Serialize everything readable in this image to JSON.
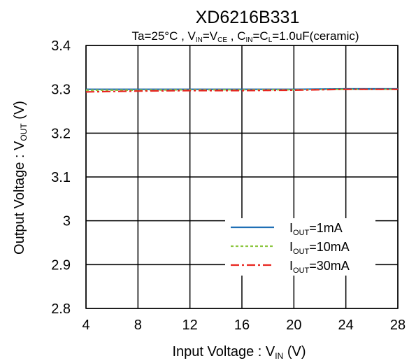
{
  "chart_data": {
    "type": "line",
    "title": "XD6216B331",
    "subtitle": {
      "prefix": "Ta=25°C , V",
      "in1": "IN",
      "eq1": "=V",
      "ce": "CE",
      "sep": " , C",
      "in2": "IN",
      "eq2": "=C",
      "l": "L",
      "suffix": "=1.0uF(ceramic)"
    },
    "xlabel": {
      "main": "Input Voltage : V",
      "sub": "IN",
      "unit": "(V)"
    },
    "ylabel": {
      "main": "Output Voltage : V",
      "sub": "OUT",
      "unit": "(V)"
    },
    "xlim": [
      4,
      28
    ],
    "ylim": [
      2.8,
      3.4
    ],
    "xticks": [
      "4",
      "8",
      "12",
      "16",
      "20",
      "24",
      "28"
    ],
    "yticks": [
      "2.8",
      "2.9",
      "3",
      "3.1",
      "3.2",
      "3.3",
      "3.4"
    ],
    "grid": true,
    "legend_position": "bottom-right",
    "series": [
      {
        "name_main": "I",
        "name_sub": "OUT",
        "name_tail": "=1mA",
        "color": "#1f6fb5",
        "dash": "solid",
        "x": [
          4,
          8,
          12,
          16,
          20,
          24,
          28
        ],
        "y": [
          3.3,
          3.3,
          3.3,
          3.3,
          3.3,
          3.301,
          3.301
        ]
      },
      {
        "name_main": "I",
        "name_sub": "OUT",
        "name_tail": "=10mA",
        "color": "#8cc63f",
        "dash": "dash",
        "x": [
          4,
          8,
          12,
          16,
          20,
          24,
          28
        ],
        "y": [
          3.298,
          3.298,
          3.299,
          3.299,
          3.299,
          3.3,
          3.3
        ]
      },
      {
        "name_main": "I",
        "name_sub": "OUT",
        "name_tail": "=30mA",
        "color": "#e8251f",
        "dash": "dashdot",
        "x": [
          4,
          8,
          12,
          16,
          20,
          24,
          28
        ],
        "y": [
          3.294,
          3.296,
          3.297,
          3.297,
          3.298,
          3.3,
          3.3
        ]
      }
    ]
  }
}
